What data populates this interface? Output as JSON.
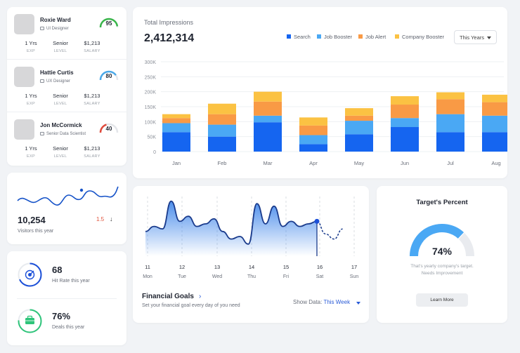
{
  "profiles": [
    {
      "name": "Roxie Ward",
      "role": "UI Designer",
      "score": "95",
      "score_pct": 0.95,
      "score_color": "#39b54a",
      "exp": "1 Yrs",
      "exp_lbl": "EXP",
      "level": "Senior",
      "level_lbl": "LEVEL",
      "salary": "$1,213",
      "salary_lbl": "SALARY"
    },
    {
      "name": "Hattie Curtis",
      "role": "UX Designer",
      "score": "80",
      "score_pct": 0.8,
      "score_color": "#4aa8e8",
      "exp": "1 Yrs",
      "exp_lbl": "EXP",
      "level": "Senior",
      "level_lbl": "LEVEL",
      "salary": "$1,213",
      "salary_lbl": "SALARY"
    },
    {
      "name": "Jon McCormick",
      "role": "Senior Data Scientist",
      "score": "40",
      "score_pct": 0.4,
      "score_color": "#e04a3c",
      "exp": "1 Yrs",
      "exp_lbl": "EXP",
      "level": "Senior",
      "level_lbl": "LEVEL",
      "salary": "$1,213",
      "salary_lbl": "SALARY"
    }
  ],
  "visitors": {
    "value": "10,254",
    "label": "Visitors this year",
    "change": "1.5",
    "change_icon": "arrow-down-icon"
  },
  "rates": [
    {
      "value": "68",
      "label": "Hit Rate this year",
      "icon": "target-icon",
      "pct": 0.68,
      "color": "#1b4fd8"
    },
    {
      "value": "76%",
      "label": "Deals this year",
      "icon": "briefcase-icon",
      "pct": 0.76,
      "color": "#2ec47a"
    }
  ],
  "impressions": {
    "title": "Total Impressions",
    "value": "2,412,314",
    "period": "This Years",
    "legend": [
      {
        "name": "Search",
        "color": "#1565f0"
      },
      {
        "name": "Job Booster",
        "color": "#4aa8f4"
      },
      {
        "name": "Job Alert",
        "color": "#f99a45"
      },
      {
        "name": "Company Booster",
        "color": "#fbc243"
      }
    ]
  },
  "chart_data": {
    "type": "bar",
    "categories": [
      "Jan",
      "Feb",
      "Mar",
      "Apr",
      "May",
      "Jun",
      "Jul",
      "Aug"
    ],
    "series": [
      {
        "name": "Search",
        "values": [
          65,
          50,
          98,
          25,
          58,
          82,
          65,
          65
        ]
      },
      {
        "name": "Job Booster",
        "values": [
          30,
          40,
          22,
          30,
          45,
          30,
          60,
          55
        ]
      },
      {
        "name": "Job Alert",
        "values": [
          17,
          35,
          47,
          32,
          17,
          45,
          50,
          45
        ]
      },
      {
        "name": "Company Booster",
        "values": [
          13,
          35,
          33,
          27,
          25,
          28,
          23,
          25
        ]
      }
    ],
    "y_ticks": [
      "0",
      "50K",
      "100K",
      "150K",
      "200K",
      "250K",
      "300K"
    ],
    "ylim": [
      0,
      300
    ],
    "stacked": true
  },
  "financial": {
    "title": "Financial Goals",
    "subtitle": "Set your financial goal every day of you need",
    "show_label": "Show Data:",
    "show_value": "This Week",
    "days": [
      {
        "d": "11",
        "w": "Mon"
      },
      {
        "d": "12",
        "w": "Tue"
      },
      {
        "d": "13",
        "w": "Wed"
      },
      {
        "d": "14",
        "w": "Thu"
      },
      {
        "d": "15",
        "w": "Fri"
      },
      {
        "d": "16",
        "w": "Sat"
      },
      {
        "d": "17",
        "w": "Sun"
      }
    ],
    "line": [
      0.35,
      0.45,
      0.4,
      0.95,
      0.55,
      0.65,
      0.45,
      0.5,
      0.6,
      0.35,
      0.2,
      0.25,
      0.1,
      0.9,
      0.5,
      0.85,
      0.45,
      0.55,
      0.45,
      0.5,
      0.55,
      0.3,
      0.2,
      0.4
    ],
    "line_projected": [
      0.55,
      0.3,
      0.2,
      0.4
    ]
  },
  "target": {
    "title": "Target's Percent",
    "value": "74%",
    "pct": 0.74,
    "desc1": "That's yearly company's target.",
    "desc2": "Needs Improvement",
    "button": "Learn More"
  }
}
